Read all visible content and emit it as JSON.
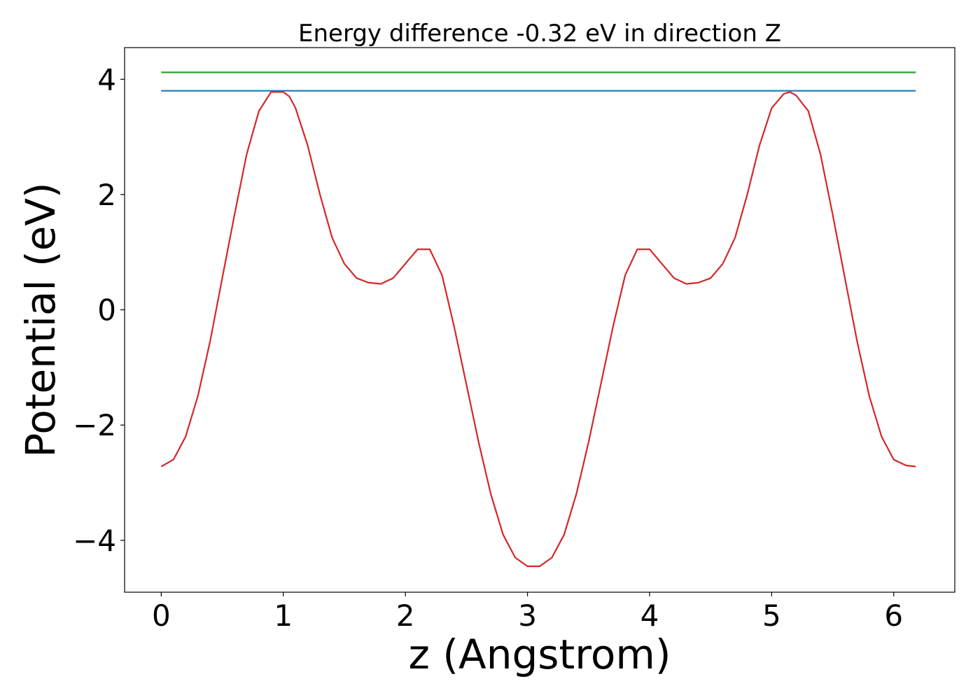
{
  "chart_data": {
    "type": "line",
    "title": "Energy difference -0.32 eV in direction Z",
    "xlabel": "z (Angstrom)",
    "ylabel": "Potential (eV)",
    "xlim": [
      -0.3,
      6.5
    ],
    "ylim": [
      -4.9,
      4.55
    ],
    "xticks": [
      0,
      1,
      2,
      3,
      4,
      5,
      6
    ],
    "yticks": [
      -4,
      -2,
      0,
      2,
      4
    ],
    "ytick_labels": [
      "−4",
      "−2",
      "0",
      "2",
      "4"
    ],
    "grid": false,
    "series": [
      {
        "color": "#d62728",
        "x": [
          0.0,
          0.1,
          0.2,
          0.3,
          0.4,
          0.5,
          0.6,
          0.7,
          0.8,
          0.9,
          1.0,
          1.05,
          1.1,
          1.2,
          1.3,
          1.4,
          1.5,
          1.6,
          1.7,
          1.8,
          1.9,
          2.0,
          2.1,
          2.2,
          2.3,
          2.4,
          2.5,
          2.6,
          2.7,
          2.8,
          2.9,
          3.0,
          3.1,
          3.2,
          3.3,
          3.4,
          3.5,
          3.6,
          3.7,
          3.8,
          3.9,
          4.0,
          4.1,
          4.2,
          4.3,
          4.4,
          4.5,
          4.6,
          4.7,
          4.8,
          4.9,
          5.0,
          5.1,
          5.15,
          5.2,
          5.3,
          5.4,
          5.5,
          5.6,
          5.7,
          5.8,
          5.9,
          6.0,
          6.1,
          6.18
        ],
        "y": [
          -2.72,
          -2.6,
          -2.2,
          -1.5,
          -0.55,
          0.55,
          1.65,
          2.7,
          3.45,
          3.78,
          3.78,
          3.7,
          3.5,
          2.85,
          2.0,
          1.25,
          0.8,
          0.55,
          0.47,
          0.45,
          0.55,
          0.8,
          1.05,
          1.05,
          0.6,
          -0.3,
          -1.3,
          -2.3,
          -3.2,
          -3.9,
          -4.3,
          -4.45,
          -4.45,
          -4.3,
          -3.9,
          -3.2,
          -2.3,
          -1.3,
          -0.3,
          0.6,
          1.05,
          1.05,
          0.8,
          0.55,
          0.45,
          0.47,
          0.55,
          0.8,
          1.25,
          2.0,
          2.85,
          3.5,
          3.75,
          3.78,
          3.72,
          3.45,
          2.7,
          1.65,
          0.55,
          -0.55,
          -1.5,
          -2.2,
          -2.6,
          -2.7,
          -2.72
        ]
      },
      {
        "color": "#1f77b4",
        "x": [
          0.0,
          6.18
        ],
        "y": [
          3.8,
          3.8
        ]
      },
      {
        "color": "#2ca02c",
        "x": [
          0.0,
          6.18
        ],
        "y": [
          4.12,
          4.12
        ]
      }
    ]
  }
}
